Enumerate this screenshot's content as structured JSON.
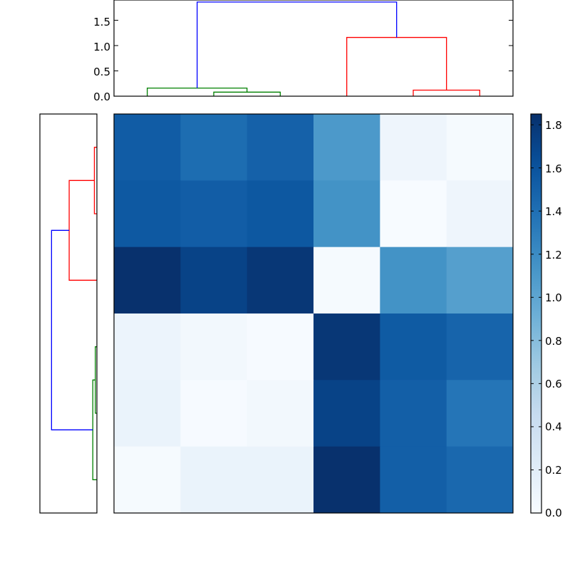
{
  "chart_data": [
    {
      "type": "heatmap",
      "title": "",
      "xlabel": "",
      "ylabel": "",
      "colormap": "Blues",
      "value_range": [
        0.0,
        1.85
      ],
      "x_ticks_shown": false,
      "y_ticks_shown": false,
      "values": [
        [
          1.54,
          1.42,
          1.5,
          1.1,
          0.08,
          0.02
        ],
        [
          1.56,
          1.53,
          1.57,
          1.15,
          0.0,
          0.08
        ],
        [
          1.84,
          1.72,
          1.8,
          0.02,
          1.15,
          1.05
        ],
        [
          0.1,
          0.05,
          0.01,
          1.8,
          1.55,
          1.48
        ],
        [
          0.12,
          0.01,
          0.05,
          1.72,
          1.52,
          1.36
        ],
        [
          0.02,
          0.12,
          0.12,
          1.84,
          1.52,
          1.45
        ]
      ]
    },
    {
      "type": "dendrogram",
      "orientation": "top",
      "ylim": [
        0.0,
        1.9
      ],
      "yticks": [
        "0.0",
        "0.5",
        "1.0",
        "1.5"
      ],
      "links": [
        {
          "x": [
            2.5,
            2.5,
            3.5,
            3.5
          ],
          "y": [
            0.0,
            0.08,
            0.08,
            0.0
          ],
          "color": "green"
        },
        {
          "x": [
            1.5,
            1.5,
            3.0,
            3.0
          ],
          "y": [
            0.0,
            0.16,
            0.16,
            0.08
          ],
          "color": "green"
        },
        {
          "x": [
            5.5,
            5.5,
            6.5,
            6.5
          ],
          "y": [
            0.0,
            0.12,
            0.12,
            0.0
          ],
          "color": "red"
        },
        {
          "x": [
            4.5,
            4.5,
            6.0,
            6.0
          ],
          "y": [
            0.0,
            1.16,
            1.16,
            0.12
          ],
          "color": "red"
        },
        {
          "x": [
            2.25,
            2.25,
            5.25,
            5.25
          ],
          "y": [
            0.16,
            1.86,
            1.86,
            1.16
          ],
          "color": "blue"
        }
      ]
    },
    {
      "type": "dendrogram",
      "orientation": "left",
      "ylim": [
        0.0,
        1.9
      ],
      "links": [
        {
          "pos": [
            1.5,
            1.5,
            2.5,
            2.5
          ],
          "height": [
            0.0,
            0.08,
            0.08,
            0.0
          ],
          "color": "red"
        },
        {
          "pos": [
            2.0,
            2.0,
            3.5,
            3.5
          ],
          "height": [
            0.08,
            0.88,
            0.88,
            0.0
          ],
          "color": "red"
        },
        {
          "pos": [
            4.5,
            4.5,
            5.5,
            5.5
          ],
          "height": [
            0.0,
            0.05,
            0.05,
            0.0
          ],
          "color": "green"
        },
        {
          "pos": [
            5.0,
            5.0,
            6.5,
            6.5
          ],
          "height": [
            0.05,
            0.13,
            0.13,
            0.0
          ],
          "color": "green"
        },
        {
          "pos": [
            2.75,
            2.75,
            5.75,
            5.75
          ],
          "height": [
            0.88,
            1.44,
            1.44,
            0.13
          ],
          "color": "blue"
        }
      ]
    },
    {
      "type": "colorbar",
      "range": [
        0.0,
        1.85
      ],
      "ticks": [
        "0.0",
        "0.2",
        "0.4",
        "0.6",
        "0.8",
        "1.0",
        "1.2",
        "1.4",
        "1.6",
        "1.8"
      ]
    }
  ],
  "colors": {
    "green": "#008000",
    "red": "#ff0000",
    "blue": "#0000ff"
  }
}
